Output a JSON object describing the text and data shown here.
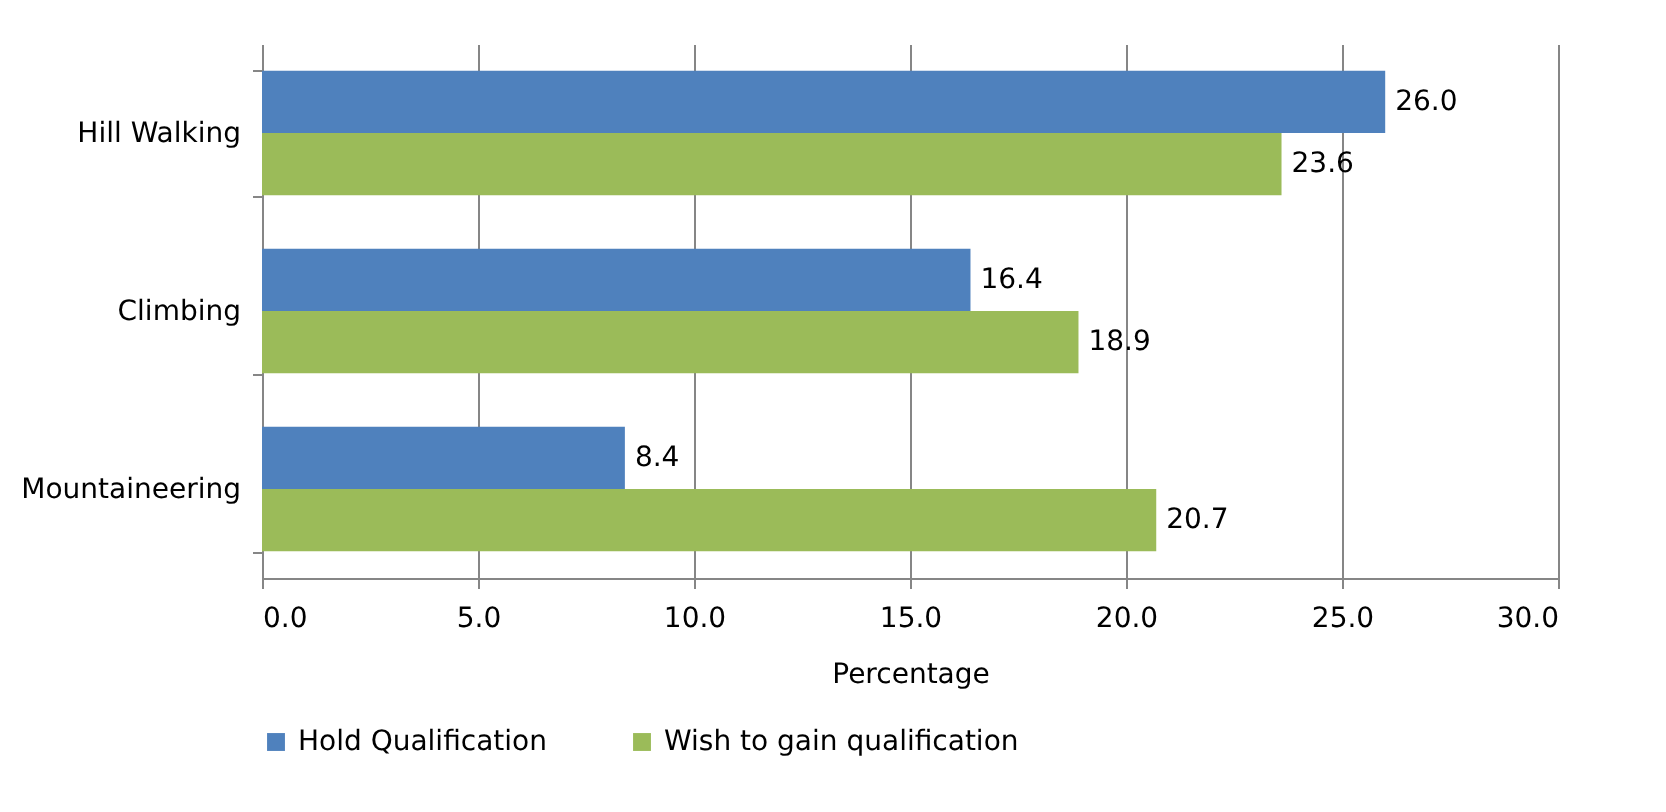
{
  "chart_data": {
    "type": "bar",
    "orientation": "horizontal",
    "xlabel": "Percentage",
    "categories": [
      "Hill Walking",
      "Climbing",
      "Mountaineering"
    ],
    "series": [
      {
        "name": "Hold Qualification",
        "color": "#4f81bd",
        "values": [
          26.0,
          16.4,
          8.4
        ],
        "value_labels": [
          "26.0",
          "16.4",
          "8.4"
        ]
      },
      {
        "name": "Wish to gain qualification",
        "color": "#9bbb59",
        "values": [
          23.6,
          18.9,
          20.7
        ],
        "value_labels": [
          "23.6",
          "18.9",
          "20.7"
        ]
      }
    ],
    "xlim": [
      0,
      30
    ],
    "xticks": [
      {
        "value": 0,
        "label": "0.0"
      },
      {
        "value": 5,
        "label": "5.0"
      },
      {
        "value": 10,
        "label": "10.0"
      },
      {
        "value": 15,
        "label": "15.0"
      },
      {
        "value": 20,
        "label": "20.0"
      },
      {
        "value": 25,
        "label": "25.0"
      },
      {
        "value": 30,
        "label": "30.0"
      }
    ],
    "grid": "x",
    "legend": "bottom"
  }
}
